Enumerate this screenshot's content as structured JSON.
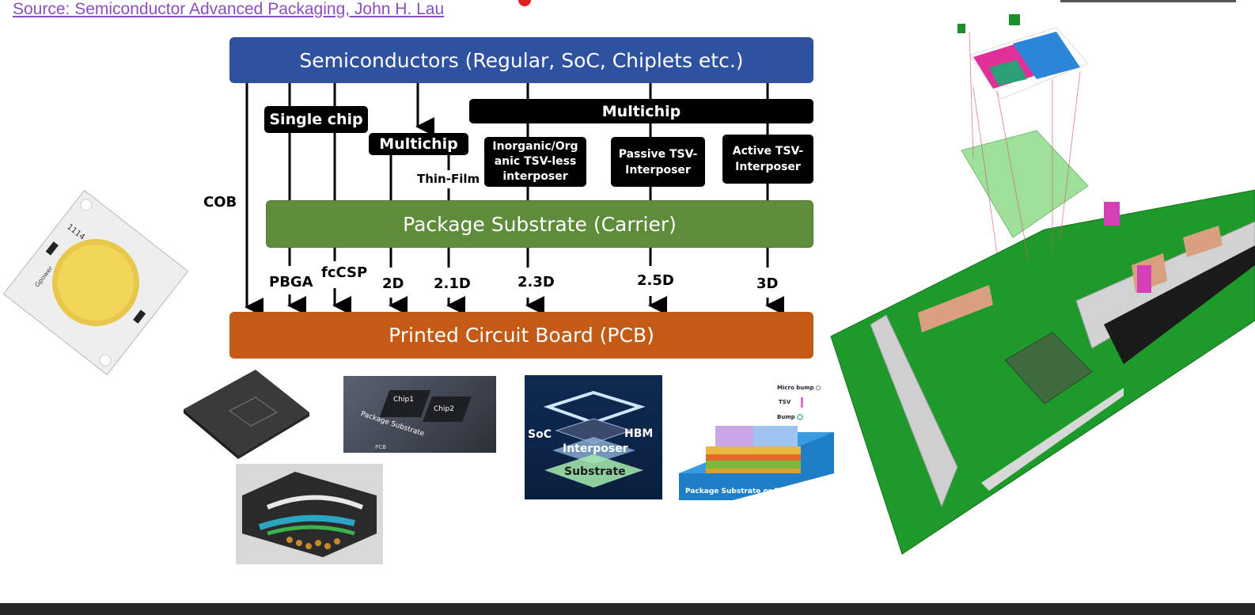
{
  "source_link": "Source: Semiconductor Advanced Packaging, John H. Lau",
  "bars": {
    "semiconductors": "Semiconductors (Regular, SoC, Chiplets etc.)",
    "substrate": "Package Substrate (Carrier)",
    "pcb": "Printed Circuit Board (PCB)"
  },
  "groups": {
    "single_chip": "Single chip",
    "multichip_small": "Multichip",
    "multichip_large": "Multichip",
    "inorganic": "Inorganic/Org anic TSV-less interposer",
    "passive": "Passive TSV-Interposer",
    "active": "Active TSV-Interposer"
  },
  "labels": {
    "cob": "COB",
    "thin_film": "Thin-Film",
    "pbga": "PBGA",
    "fccsp": "fcCSP",
    "d2": "2D",
    "d21": "2.1D",
    "d23": "2.3D",
    "d25": "2.5D",
    "d3": "3D"
  },
  "images": {
    "chip1": "Chip1",
    "chip2": "Chip2",
    "pkg_substrate": "Package Substrate",
    "pcb_small": "PCB",
    "soc": "SoC",
    "hbm": "HBM",
    "interposer": "Interposer",
    "substrate": "Substrate",
    "micro_bump": "Micro bump",
    "tsv": "TSV",
    "bump": "Bump",
    "pkg_sub_or_pcb": "Package Substrate or PCB",
    "led_code": "1114",
    "led_brand": "Gpower"
  },
  "colors": {
    "semiconductors": "#2f52a0",
    "substrate": "#5e8c3a",
    "pcb": "#c35a15",
    "board_green": "#1e9a2a"
  }
}
